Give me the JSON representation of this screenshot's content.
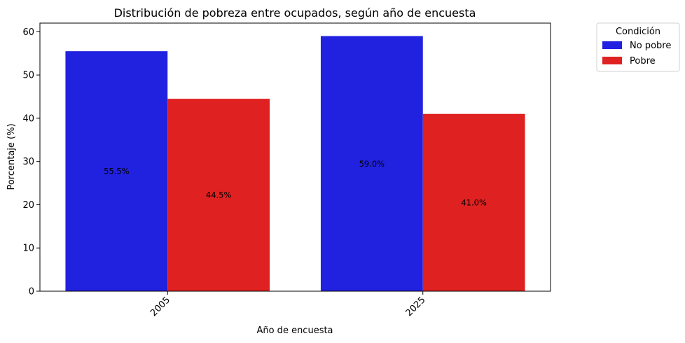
{
  "chart_data": {
    "type": "bar",
    "title": "Distribución de pobreza entre ocupados, según año de encuesta",
    "xlabel": "Año de encuesta",
    "ylabel": "Porcentaje (%)",
    "categories": [
      "2005",
      "2025"
    ],
    "series": [
      {
        "name": "No pobre",
        "values": [
          55.5,
          59.0
        ],
        "labels": [
          "55.5%",
          "59.0%"
        ],
        "color": "#2121e0"
      },
      {
        "name": "Pobre",
        "values": [
          44.5,
          41.0
        ],
        "labels": [
          "44.5%",
          "41.0%"
        ],
        "color": "#e02121"
      }
    ],
    "ylim": [
      0,
      62
    ],
    "yticks": [
      0,
      10,
      20,
      30,
      40,
      50,
      60
    ],
    "grid": false,
    "legend": {
      "title": "Condición",
      "position": "outside-top-right"
    },
    "xtick_rotation": -45
  }
}
